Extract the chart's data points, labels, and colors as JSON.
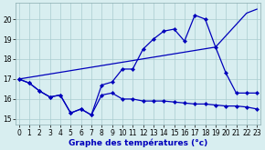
{
  "xlabel": "Graphe des températures (°c)",
  "background_color": "#d8eef0",
  "grid_color": "#aaccd0",
  "line_color": "#0000bb",
  "ylim": [
    14.7,
    20.8
  ],
  "xlim": [
    -0.3,
    23.3
  ],
  "yticks": [
    15,
    16,
    17,
    18,
    19,
    20
  ],
  "xticks": [
    0,
    1,
    2,
    3,
    4,
    5,
    6,
    7,
    8,
    9,
    10,
    11,
    12,
    13,
    14,
    15,
    16,
    17,
    18,
    19,
    20,
    21,
    22,
    23
  ],
  "series1_x": [
    0,
    1,
    2,
    3,
    4,
    5,
    6,
    7,
    8,
    9,
    10,
    11,
    12,
    13,
    14,
    15,
    16,
    17,
    18,
    19,
    20,
    21,
    22,
    23
  ],
  "series1_y": [
    17.0,
    16.8,
    16.4,
    16.1,
    16.2,
    15.3,
    15.5,
    15.2,
    16.2,
    16.3,
    16.0,
    16.0,
    15.9,
    15.9,
    15.9,
    15.85,
    15.8,
    15.75,
    15.75,
    15.7,
    15.65,
    15.65,
    15.6,
    15.5
  ],
  "series2_x": [
    0,
    1,
    2,
    3,
    4,
    5,
    6,
    7,
    8,
    9,
    10,
    11,
    12,
    13,
    14,
    15,
    16,
    17,
    18,
    19,
    20,
    21,
    22,
    23
  ],
  "series2_y": [
    17.0,
    16.8,
    16.4,
    16.1,
    16.2,
    15.3,
    15.5,
    15.2,
    16.7,
    16.85,
    17.5,
    17.5,
    18.5,
    19.0,
    19.4,
    19.5,
    18.9,
    20.2,
    20.0,
    18.6,
    17.3,
    16.3,
    16.3,
    16.3
  ],
  "series3_x": [
    0,
    19,
    22,
    23
  ],
  "series3_y": [
    17.0,
    18.6,
    20.3,
    20.5
  ],
  "marker": "D",
  "markersize": 2.2,
  "linewidth": 0.9,
  "tick_fontsize": 5.5,
  "xlabel_fontsize": 6.5
}
